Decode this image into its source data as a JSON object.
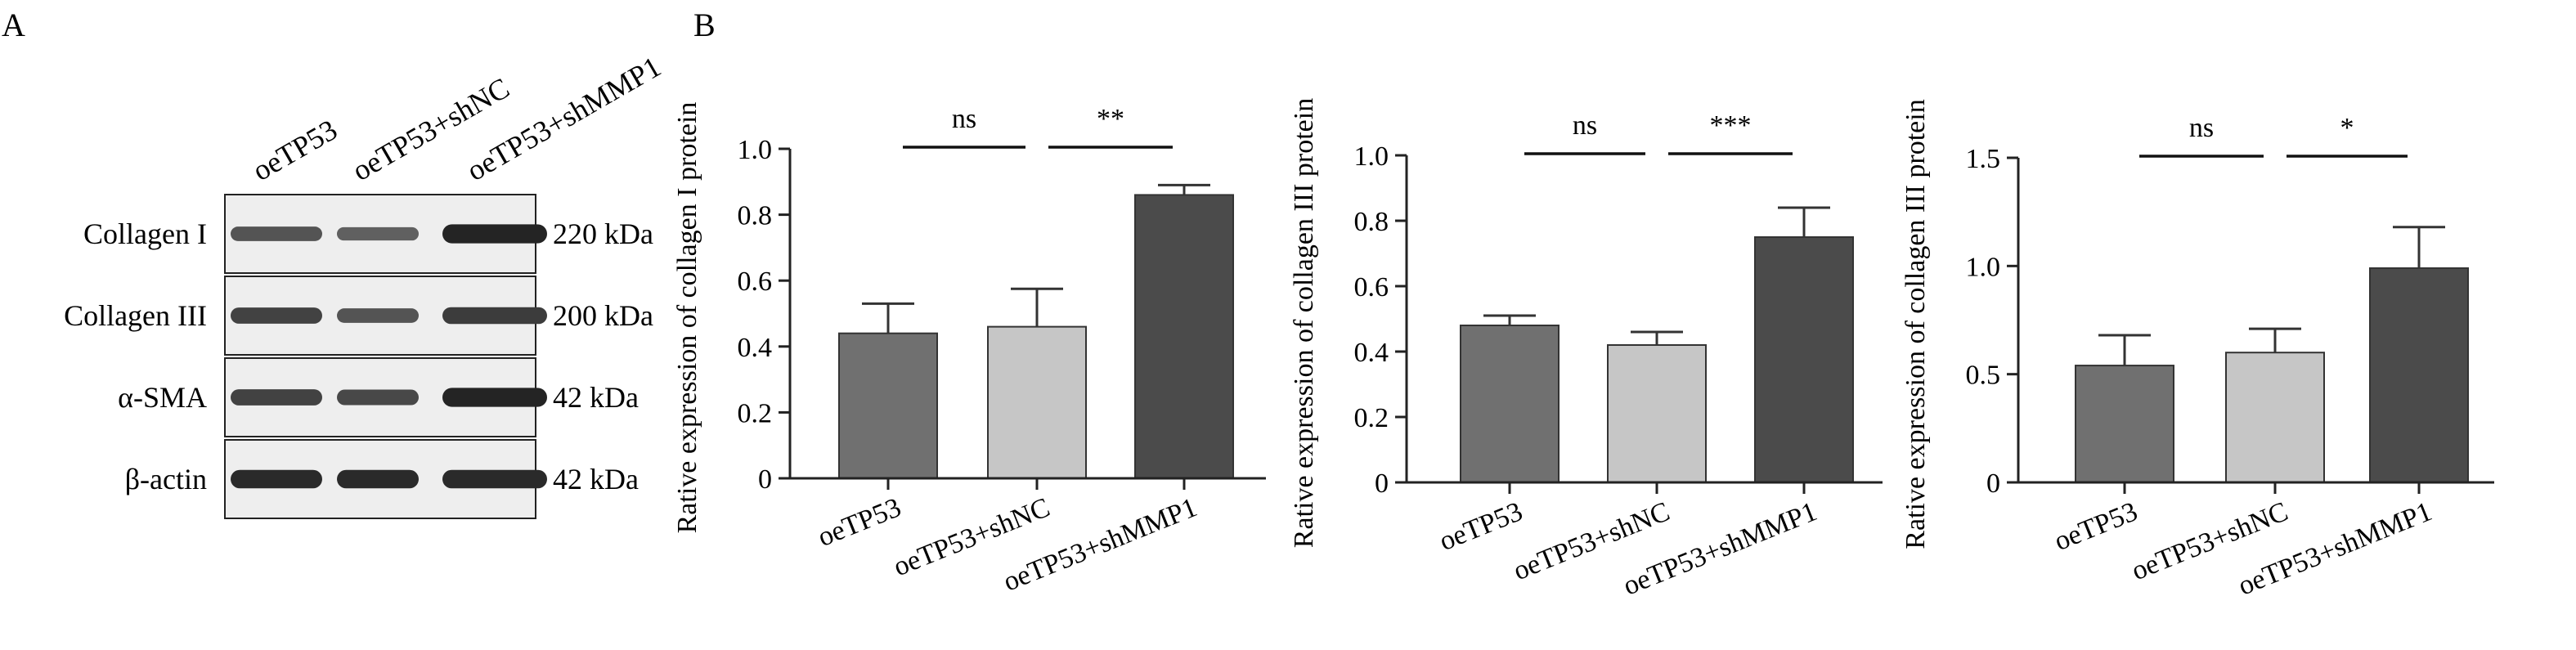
{
  "panel_a": {
    "label": "A",
    "lanes": [
      "oeTP53",
      "oeTP53+shNC",
      "oeTP53+shMMP1"
    ],
    "rows": [
      {
        "protein": "Collagen I",
        "size": "220 kDa",
        "intensity": [
          0.55,
          0.45,
          0.95
        ]
      },
      {
        "protein": "Collagen III",
        "size": "200 kDa",
        "intensity": [
          0.7,
          0.55,
          0.75
        ]
      },
      {
        "protein": "α-SMA",
        "size": "42 kDa",
        "intensity": [
          0.7,
          0.65,
          0.95
        ]
      },
      {
        "protein": "β-actin",
        "size": "42 kDa",
        "intensity": [
          0.9,
          0.9,
          0.9
        ]
      }
    ]
  },
  "panel_b": {
    "label": "B"
  },
  "colors": {
    "bar1": "#707070",
    "bar2": "#c6c6c6",
    "bar3": "#4b4b4b",
    "axis": "#222222"
  },
  "chart_data": [
    {
      "type": "bar",
      "categories": [
        "oeTP53",
        "oeTP53+shNC",
        "oeTP53+shMMP1"
      ],
      "values": [
        0.44,
        0.46,
        0.86
      ],
      "errors": [
        0.09,
        0.115,
        0.03
      ],
      "ylabel": "Rative expression of collagen I protein",
      "ylim": [
        0,
        1.0
      ],
      "yticks": [
        0,
        0.2,
        0.4,
        0.6,
        0.8,
        1.0
      ],
      "ytick_labels": [
        "0",
        "0.2",
        "0.4",
        "0.6",
        "0.8",
        "1.0"
      ],
      "significance": [
        {
          "from": 0,
          "to": 1,
          "label": "ns"
        },
        {
          "from": 1,
          "to": 2,
          "label": "**"
        }
      ]
    },
    {
      "type": "bar",
      "categories": [
        "oeTP53",
        "oeTP53+shNC",
        "oeTP53+shMMP1"
      ],
      "values": [
        0.48,
        0.42,
        0.75
      ],
      "errors": [
        0.03,
        0.04,
        0.09
      ],
      "ylabel": "Rative expression of collagen III protein",
      "ylim": [
        0,
        1.0
      ],
      "yticks": [
        0,
        0.2,
        0.4,
        0.6,
        0.8,
        1.0
      ],
      "ytick_labels": [
        "0",
        "0.2",
        "0.4",
        "0.6",
        "0.8",
        "1.0"
      ],
      "significance": [
        {
          "from": 0,
          "to": 1,
          "label": "ns"
        },
        {
          "from": 1,
          "to": 2,
          "label": "***"
        }
      ]
    },
    {
      "type": "bar",
      "categories": [
        "oeTP53",
        "oeTP53+shNC",
        "oeTP53+shMMP1"
      ],
      "values": [
        0.54,
        0.6,
        0.99
      ],
      "errors": [
        0.14,
        0.11,
        0.19
      ],
      "ylabel": "Rative expression of collagen III protein",
      "ylim": [
        0,
        1.5
      ],
      "yticks": [
        0,
        0.5,
        1.0,
        1.5
      ],
      "ytick_labels": [
        "0",
        "0.5",
        "1.0",
        "1.5"
      ],
      "significance": [
        {
          "from": 0,
          "to": 1,
          "label": "ns"
        },
        {
          "from": 1,
          "to": 2,
          "label": "*"
        }
      ]
    }
  ]
}
